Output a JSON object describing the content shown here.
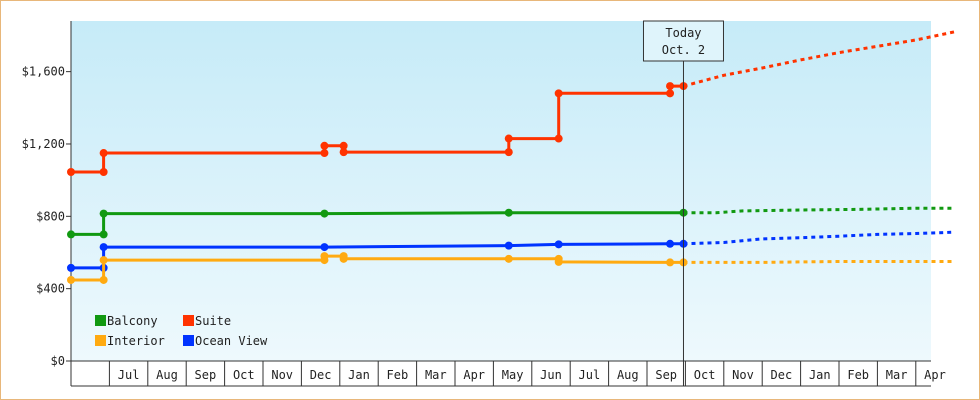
{
  "chart_data": {
    "type": "line",
    "title": "",
    "xlabel": "",
    "ylabel": "",
    "ylim": [
      0,
      1880
    ],
    "y_ticks": [
      {
        "value": 0,
        "label": "$0"
      },
      {
        "value": 400,
        "label": "$400"
      },
      {
        "value": 800,
        "label": "$800"
      },
      {
        "value": 1200,
        "label": "$1,200"
      },
      {
        "value": 1600,
        "label": "$1,600"
      }
    ],
    "x_axis": {
      "unit": "month",
      "start": "Jun",
      "month_labels": [
        "",
        "Jul",
        "Aug",
        "Sep",
        "Oct",
        "Nov",
        "Dec",
        "Jan",
        "Feb",
        "Mar",
        "Apr",
        "May",
        "Jun",
        "Jul",
        "Aug",
        "Sep",
        "Oct",
        "Nov",
        "Dec",
        "Jan",
        "Feb",
        "Mar",
        "Apr"
      ]
    },
    "today_marker": {
      "line1": "Today",
      "line2": "Oct. 2",
      "x": 15.95
    },
    "grid": false,
    "legend_placement": "bottom-left",
    "series": [
      {
        "name": "Suite",
        "color": "#ff3300",
        "points": [
          [
            0.0,
            1045
          ],
          [
            0.85,
            1045
          ],
          [
            0.85,
            1150
          ],
          [
            6.6,
            1150
          ],
          [
            6.6,
            1190
          ],
          [
            7.1,
            1190
          ],
          [
            7.1,
            1155
          ],
          [
            11.4,
            1155
          ],
          [
            11.4,
            1230
          ],
          [
            12.7,
            1230
          ],
          [
            12.7,
            1480
          ],
          [
            15.6,
            1480
          ],
          [
            15.6,
            1520
          ],
          [
            15.95,
            1520
          ]
        ],
        "forecast": [
          [
            15.95,
            1520
          ],
          [
            17,
            1580
          ],
          [
            18,
            1620
          ],
          [
            19,
            1665
          ],
          [
            20,
            1705
          ],
          [
            21,
            1740
          ],
          [
            22,
            1775
          ],
          [
            23,
            1820
          ]
        ]
      },
      {
        "name": "Balcony",
        "color": "#119911",
        "points": [
          [
            0.0,
            700
          ],
          [
            0.85,
            700
          ],
          [
            0.85,
            815
          ],
          [
            6.6,
            815
          ],
          [
            11.4,
            820
          ],
          [
            15.95,
            820
          ]
        ],
        "forecast": [
          [
            15.95,
            820
          ],
          [
            16.8,
            820
          ],
          [
            17.5,
            830
          ],
          [
            19,
            835
          ],
          [
            20.5,
            838
          ],
          [
            22,
            845
          ],
          [
            23,
            845
          ]
        ]
      },
      {
        "name": "Ocean View",
        "color": "#0033ff",
        "points": [
          [
            0.0,
            515
          ],
          [
            0.85,
            515
          ],
          [
            0.85,
            630
          ],
          [
            6.6,
            630
          ],
          [
            11.4,
            638
          ],
          [
            12.7,
            645
          ],
          [
            15.6,
            648
          ],
          [
            15.95,
            648
          ]
        ],
        "forecast": [
          [
            15.95,
            648
          ],
          [
            17,
            655
          ],
          [
            18,
            675
          ],
          [
            19,
            682
          ],
          [
            20,
            690
          ],
          [
            21,
            700
          ],
          [
            22,
            705
          ],
          [
            23,
            712
          ]
        ]
      },
      {
        "name": "Interior",
        "color": "#ffaa11",
        "points": [
          [
            0.0,
            448
          ],
          [
            0.85,
            448
          ],
          [
            0.85,
            558
          ],
          [
            6.6,
            558
          ],
          [
            6.6,
            580
          ],
          [
            7.1,
            580
          ],
          [
            7.1,
            565
          ],
          [
            11.4,
            565
          ],
          [
            12.7,
            565
          ],
          [
            12.7,
            548
          ],
          [
            15.6,
            545
          ],
          [
            15.95,
            545
          ]
        ],
        "forecast": [
          [
            15.95,
            545
          ],
          [
            17,
            545
          ],
          [
            18,
            545
          ],
          [
            19,
            548
          ],
          [
            20,
            550
          ],
          [
            21,
            550
          ],
          [
            22,
            550
          ],
          [
            23,
            550
          ]
        ]
      }
    ],
    "legend": [
      {
        "label": "Balcony",
        "color": "#119911"
      },
      {
        "label": "Suite",
        "color": "#ff3300"
      },
      {
        "label": "Interior",
        "color": "#ffaa11"
      },
      {
        "label": "Ocean View",
        "color": "#0033ff"
      }
    ]
  }
}
